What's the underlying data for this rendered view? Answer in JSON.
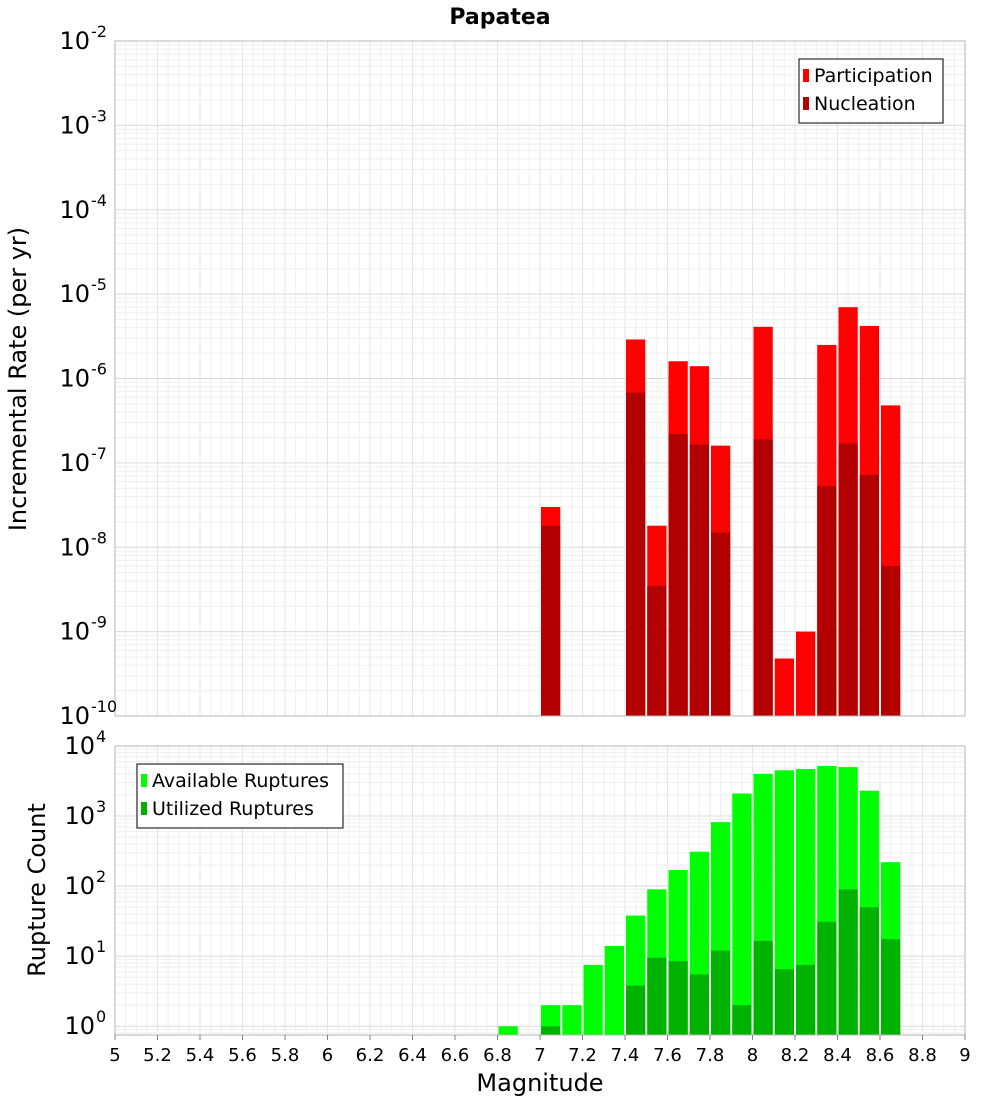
{
  "chart_data": [
    {
      "type": "bar",
      "panel": "top",
      "title": "Papatea",
      "ylabel": "Incremental Rate (per yr)",
      "xlabel": "",
      "y_scale": "log",
      "ylim": [
        1e-10,
        0.01
      ],
      "xlim": [
        5,
        9
      ],
      "y_ticks": [
        {
          "base": "10",
          "exp": "-10"
        },
        {
          "base": "10",
          "exp": "-9"
        },
        {
          "base": "10",
          "exp": "-8"
        },
        {
          "base": "10",
          "exp": "-7"
        },
        {
          "base": "10",
          "exp": "-6"
        },
        {
          "base": "10",
          "exp": "-5"
        },
        {
          "base": "10",
          "exp": "-4"
        },
        {
          "base": "10",
          "exp": "-3"
        },
        {
          "base": "10",
          "exp": "-2"
        }
      ],
      "grid": true,
      "legend_position": "top-right",
      "bar_width": 0.1,
      "x": [
        7.05,
        7.45,
        7.55,
        7.65,
        7.75,
        7.85,
        8.05,
        8.15,
        8.25,
        8.35,
        8.45,
        8.55,
        8.65
      ],
      "series": [
        {
          "name": "Participation",
          "color": "#ff0000",
          "values": [
            3e-08,
            2.9e-06,
            1.8e-08,
            1.6e-06,
            1.4e-06,
            1.6e-07,
            4.1e-06,
            4.8e-10,
            1e-09,
            2.5e-06,
            7e-06,
            4.2e-06,
            4.8e-07
          ]
        },
        {
          "name": "Nucleation",
          "color": "#b20000",
          "values": [
            1.8e-08,
            6.8e-07,
            3.5e-09,
            2.2e-07,
            1.65e-07,
            1.5e-08,
            1.9e-07,
            null,
            null,
            5.3e-08,
            1.7e-07,
            7.2e-08,
            6e-09
          ]
        }
      ]
    },
    {
      "type": "bar",
      "panel": "bottom",
      "title": "",
      "ylabel": "Rupture Count",
      "xlabel": "Magnitude",
      "y_scale": "log",
      "ylim": [
        0.75,
        10000
      ],
      "xlim": [
        5,
        9
      ],
      "y_ticks": [
        {
          "base": "10",
          "exp": "0"
        },
        {
          "base": "10",
          "exp": "1"
        },
        {
          "base": "10",
          "exp": "2"
        },
        {
          "base": "10",
          "exp": "3"
        },
        {
          "base": "10",
          "exp": "4"
        }
      ],
      "x_ticks": [
        "5",
        "5.2",
        "5.4",
        "5.6",
        "5.8",
        "6",
        "6.2",
        "6.4",
        "6.6",
        "6.8",
        "7",
        "7.2",
        "7.4",
        "7.6",
        "7.8",
        "8",
        "8.2",
        "8.4",
        "8.6",
        "8.8",
        "9"
      ],
      "grid": true,
      "legend_position": "top-left",
      "bar_width": 0.1,
      "x": [
        6.85,
        6.95,
        7.05,
        7.15,
        7.25,
        7.35,
        7.45,
        7.55,
        7.65,
        7.75,
        7.85,
        7.95,
        8.05,
        8.15,
        8.25,
        8.35,
        8.45,
        8.55,
        8.65
      ],
      "series": [
        {
          "name": "Available Ruptures",
          "color": "#00ff00",
          "values": [
            1,
            null,
            2,
            2,
            7.5,
            14,
            38,
            90,
            170,
            310,
            820,
            2100,
            4000,
            4500,
            4700,
            5200,
            5000,
            2300,
            220
          ]
        },
        {
          "name": "Utilized Ruptures",
          "color": "#00b200",
          "values": [
            null,
            null,
            1,
            null,
            null,
            null,
            3.8,
            9.5,
            8.5,
            5.5,
            12,
            2,
            16.5,
            6.5,
            7.5,
            31,
            90,
            50,
            17.5
          ]
        }
      ]
    }
  ]
}
